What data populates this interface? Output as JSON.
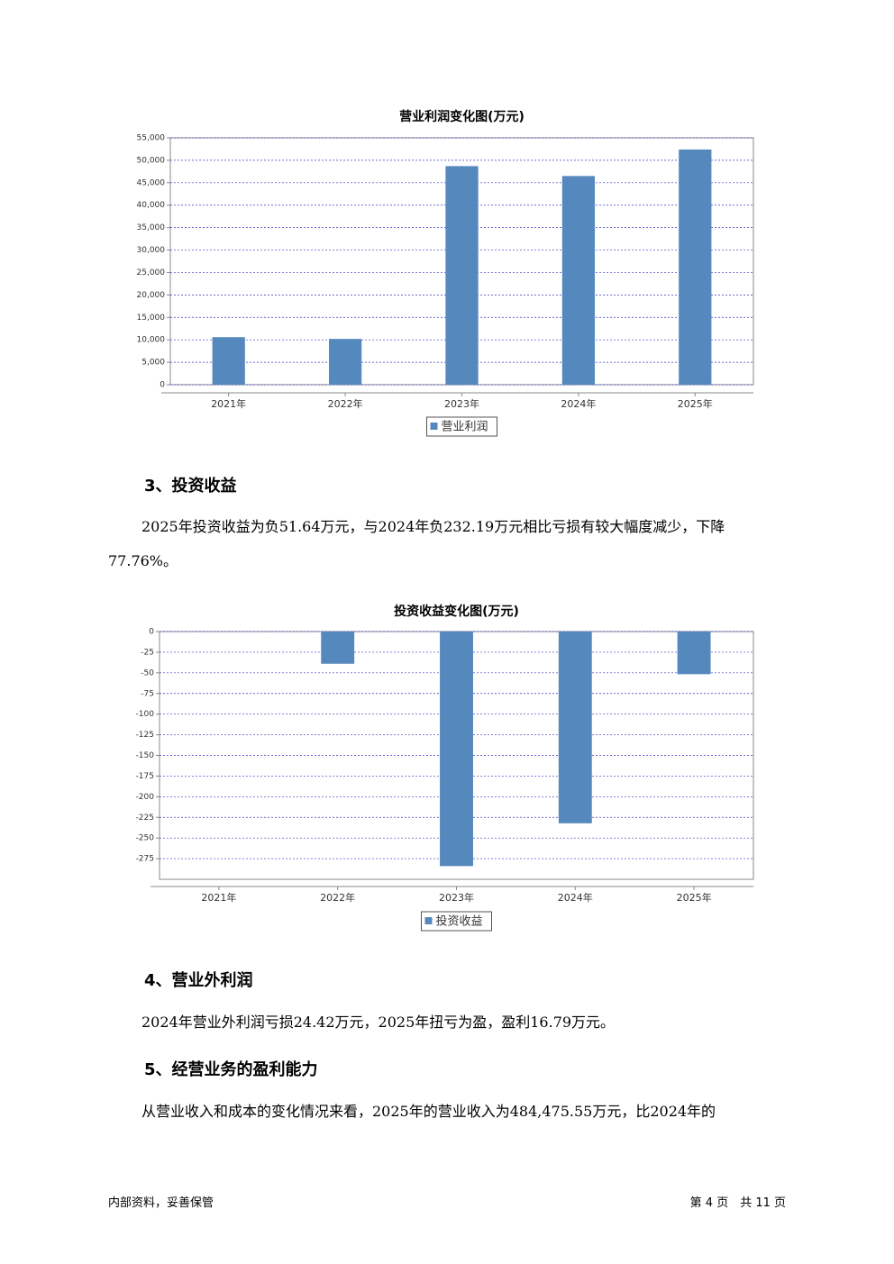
{
  "chart_data": [
    {
      "type": "bar",
      "title": "营业利润变化图(万元)",
      "categories": [
        "2021年",
        "2022年",
        "2023年",
        "2024年",
        "2025年"
      ],
      "series": [
        {
          "name": "营业利润",
          "color": "#5589be",
          "values": [
            10600,
            10200,
            48700,
            46500,
            52400
          ]
        }
      ],
      "ylim": [
        0,
        55000
      ],
      "yticks": [
        0,
        {
          "value": 5000,
          "label": "5,000"
        },
        {
          "value": 10000,
          "label": "10,000"
        },
        {
          "value": 15000,
          "label": "15,000"
        },
        {
          "value": 20000,
          "label": "20,000"
        },
        {
          "value": 25000,
          "label": "25,000"
        },
        {
          "value": 30000,
          "label": "30,000"
        },
        {
          "value": 35000,
          "label": "35,000"
        },
        {
          "value": 40000,
          "label": "40,000"
        },
        {
          "value": 45000,
          "label": "45,000"
        },
        {
          "value": 50000,
          "label": "50,000"
        },
        {
          "value": 55000,
          "label": "55,000"
        }
      ],
      "grid": true
    },
    {
      "type": "bar",
      "title": "投资收益变化图(万元)",
      "categories": [
        "2021年",
        "2022年",
        "2023年",
        "2024年",
        "2025年"
      ],
      "series": [
        {
          "name": "投资收益",
          "color": "#5589be",
          "values": [
            null,
            -39,
            -284,
            -232.19,
            -51.64
          ]
        }
      ],
      "ylim": [
        -300,
        0
      ],
      "yticks": [
        0,
        -25,
        -50,
        -75,
        -100,
        -125,
        -150,
        -175,
        -200,
        -225,
        -250,
        -275
      ],
      "grid": true
    }
  ],
  "sections": [
    {
      "heading": "3、投资收益",
      "paragraph": "2025年投资收益为负51.64万元，与2024年负232.19万元相比亏损有较大幅度减少，下降77.76%。"
    },
    {
      "heading": "4、营业外利润",
      "paragraph": "2024年营业外利润亏损24.42万元，2025年扭亏为盈，盈利16.79万元。"
    },
    {
      "heading": "5、经营业务的盈利能力",
      "paragraph": "从营业收入和成本的变化情况来看，2025年的营业收入为484,475.55万元，比2024年的"
    }
  ],
  "footer": {
    "left": "内部资料，妥善保管",
    "right": "第 4 页　共 11 页"
  }
}
